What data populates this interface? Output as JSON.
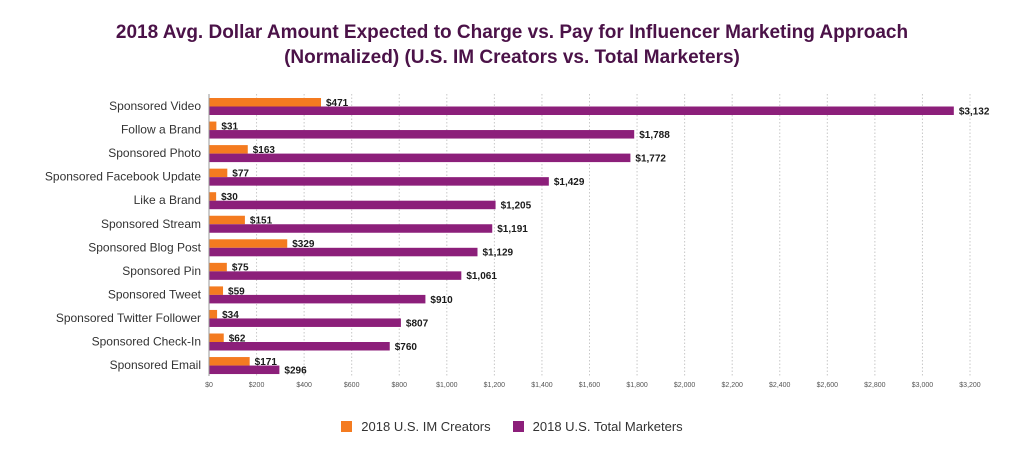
{
  "chart_data": {
    "type": "bar",
    "orientation": "horizontal",
    "title_lines": [
      "2018 Avg. Dollar Amount Expected to Charge vs. Pay for Influencer Marketing Approach",
      "(Normalized) (U.S. IM Creators vs. Total Marketers)"
    ],
    "categories": [
      "Sponsored Video",
      "Follow a Brand",
      "Sponsored Photo",
      "Sponsored Facebook Update",
      "Like a Brand",
      "Sponsored Stream",
      "Sponsored Blog Post",
      "Sponsored Pin",
      "Sponsored Tweet",
      "Sponsored Twitter Follower",
      "Sponsored Check-In",
      "Sponsored Email"
    ],
    "series": [
      {
        "name": "2018 U.S. IM Creators",
        "color": "#f47b20",
        "values": [
          471,
          31,
          163,
          77,
          30,
          151,
          329,
          75,
          59,
          34,
          62,
          171
        ],
        "labels": [
          "$471",
          "$31",
          "$163",
          "$77",
          "$30",
          "$151",
          "$329",
          "$75",
          "$59",
          "$34",
          "$62",
          "$171"
        ]
      },
      {
        "name": "2018 U.S. Total Marketers",
        "color": "#8c1f7a",
        "values": [
          3132,
          1788,
          1772,
          1429,
          1205,
          1191,
          1129,
          1061,
          910,
          807,
          760,
          296
        ],
        "labels": [
          "$3,132",
          "$1,788",
          "$1,772",
          "$1,429",
          "$1,205",
          "$1,191",
          "$1,129",
          "$1,061",
          "$910",
          "$807",
          "$760",
          "$296"
        ]
      }
    ],
    "xlim": [
      0,
      3200
    ],
    "xticks": [
      0,
      200,
      400,
      600,
      800,
      1000,
      1200,
      1400,
      1600,
      1800,
      2000,
      2200,
      2400,
      2600,
      2800,
      3000,
      3200
    ],
    "xtick_labels": [
      "$0",
      "$200",
      "$400",
      "$600",
      "$800",
      "$1,000",
      "$1,200",
      "$1,400",
      "$1,600",
      "$1,800",
      "$2,000",
      "$2,200",
      "$2,400",
      "$2,600",
      "$2,800",
      "$3,000",
      "$3,200"
    ],
    "grid": "vertical dotted",
    "legend_position": "bottom-center"
  }
}
